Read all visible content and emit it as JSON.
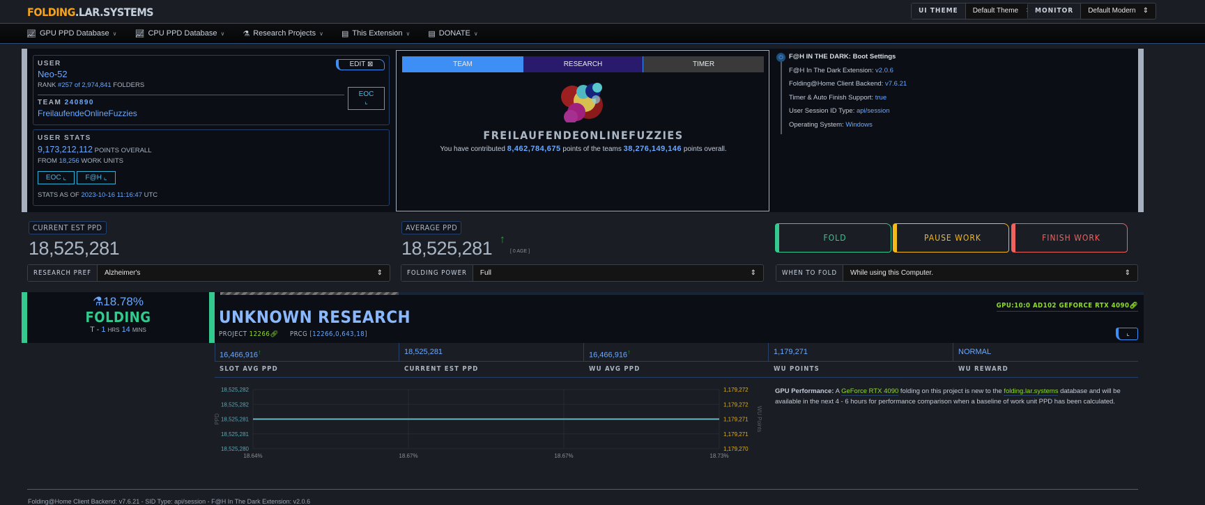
{
  "header": {
    "logo_a": "FOLDING",
    "logo_b": ".LAR.SYSTEMS",
    "ui_theme_label": "UI THEME",
    "ui_theme_value": "Default Theme",
    "monitor_label": "MONITOR",
    "monitor_value": "Default Modern"
  },
  "nav": [
    {
      "label": "GPU PPD Database",
      "icon": "chart-icon"
    },
    {
      "label": "CPU PPD Database",
      "icon": "chart-icon"
    },
    {
      "label": "Research Projects",
      "icon": "flask-icon"
    },
    {
      "label": "This Extension",
      "icon": "page-icon"
    },
    {
      "label": "DONATE",
      "icon": "page-icon"
    }
  ],
  "user": {
    "heading": "USER",
    "name": "Neo-52",
    "rank_pre": "RANK",
    "rank": "#257 of 2,974,841",
    "rank_post": "FOLDERS",
    "edit": "EDIT",
    "team_heading": "TEAM",
    "team_id": "240890",
    "team_name": "FreilaufendeOnlineFuzzies",
    "eoc": "EOC"
  },
  "stats": {
    "heading": "USER STATS",
    "points": "9,173,212,112",
    "points_label": "POINTS OVERALL",
    "from": "FROM",
    "wus": "18,256",
    "wus_label": "WORK UNITS",
    "eoc": "EOC",
    "fah": "F@H",
    "asof_label": "STATS AS OF",
    "asof": "2023-10-16 11:16:47",
    "tz": "UTC"
  },
  "team_panel": {
    "tabs": [
      "TEAM",
      "RESEARCH",
      "TIMER"
    ],
    "team_name": "FREILAUFENDEONLINEFUZZIES",
    "contrib_a": "You have contributed",
    "contrib_points": "8,462,784,675",
    "contrib_b": "points of the teams",
    "team_points": "38,276,149,146",
    "contrib_c": "points overall."
  },
  "info": {
    "title": "F@H IN THE DARK:",
    "title_link": "Boot Settings",
    "rows": [
      {
        "k": "F@H In The Dark Extension:",
        "v": "v2.0.6"
      },
      {
        "k": "Folding@Home Client Backend:",
        "v": "v7.6.21"
      },
      {
        "k": "Timer & Auto Finish Support:",
        "v": "true"
      },
      {
        "k": "User Session ID Type:",
        "v": "api/session"
      },
      {
        "k": "Operating System:",
        "v": "Windows"
      }
    ]
  },
  "ppd": {
    "current_label": "CURRENT EST PPD",
    "current": "18,525,281",
    "avg_label": "AVERAGE PPD",
    "avg": "18,525,281",
    "age": "[ 0 AGE ]"
  },
  "actions": {
    "fold": "FOLD",
    "pause": "PAUSE WORK",
    "finish": "FINISH WORK",
    "colors": {
      "fold": "#33c98f",
      "pause": "#f5b819",
      "finish": "#f0625d"
    }
  },
  "selects": {
    "research_label": "RESEARCH PREF",
    "research": "Alzheimer's",
    "power_label": "FOLDING POWER",
    "power": "Full",
    "when_label": "WHEN TO FOLD",
    "when": "While using this Computer."
  },
  "slot": {
    "progress": "18.78%",
    "progress_value": 18.78,
    "state": "FOLDING",
    "eta_pre": "T -",
    "hrs": "1",
    "hrs_label": "HRS",
    "mins": "14",
    "mins_label": "MINS",
    "title": "UNKNOWN RESEARCH",
    "project_label": "PROJECT",
    "project": "12266",
    "prcg_label": "PRCG",
    "prcg": "[12266,0,643,18]",
    "gpu": "GPU:10:0 AD102 GEFORCE RTX 4090"
  },
  "cells": [
    {
      "value": "16,466,916",
      "up": true,
      "label": "SLOT AVG PPD"
    },
    {
      "value": "18,525,281",
      "label": "CURRENT EST PPD"
    },
    {
      "value": "16,466,916",
      "up": true,
      "label": "WU AVG PPD"
    },
    {
      "value": "1,179,271",
      "label": "WU POINTS"
    },
    {
      "value": "NORMAL",
      "label": "WU REWARD"
    }
  ],
  "perf": {
    "a": "GPU Performance:",
    "b": "A",
    "gpu": "GeForce RTX 4090",
    "c": "folding on this project is new to the",
    "site": "folding.lar.systems",
    "d": "database and will be available in the next 4 - 6 hours for performance comparison when a baseline of work unit PPD has been calculated."
  },
  "chart_data": {
    "type": "line",
    "xlabel": "",
    "ylabel": "PPD",
    "y2label": "WU Points",
    "x_ticks": [
      "18.64%",
      "18.67%",
      "18.67%",
      "18.73%"
    ],
    "y_ticks": [
      "18,525,282",
      "18,525,282",
      "18,525,281",
      "18,525,281",
      "18,525,280"
    ],
    "y2_ticks": [
      "1,179,272",
      "1,179,272",
      "1,179,271",
      "1,179,271",
      "1,179,270"
    ],
    "ylim": [
      18525280,
      18525282
    ],
    "y2lim": [
      1179270,
      1179272
    ],
    "series": [
      {
        "axis": "left",
        "color": "#5fa89a",
        "x": [
          18.64,
          18.73
        ],
        "y": [
          18525281,
          18525281
        ]
      },
      {
        "axis": "right",
        "color": "#6ec1d6",
        "x": [
          18.64,
          18.73
        ],
        "y": [
          1179271,
          1179271
        ]
      }
    ]
  },
  "footer": "Folding@Home Client Backend: v7.6.21 - SID Type: api/session - F@H In The Dark Extension: v2.0.6"
}
